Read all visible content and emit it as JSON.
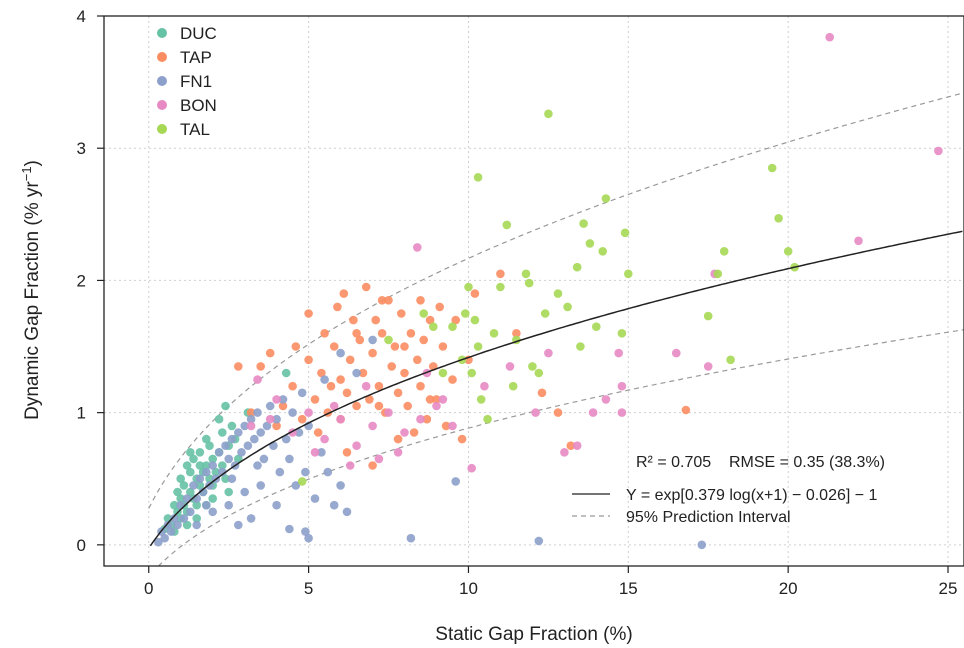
{
  "chart_data": {
    "type": "scatter",
    "xlabel": "Static Gap Fraction (%)",
    "ylabel_main": "Dynamic Gap Fraction (% yr",
    "ylabel_sup": "−1",
    "ylabel_close": ")",
    "xlim": [
      -1.4,
      25.5
    ],
    "ylim": [
      -0.16,
      4.0
    ],
    "xticks": [
      0,
      5,
      10,
      15,
      20,
      25
    ],
    "xtick_labels": [
      "0",
      "5",
      "10",
      "15",
      "20",
      "25"
    ],
    "yticks": [
      0,
      1,
      2,
      3,
      4
    ],
    "ytick_labels": [
      "0",
      "1",
      "2",
      "3",
      "4"
    ],
    "grid": true,
    "legend_position": "top-left",
    "stats_text": "R² = 0.705    RMSE = 0.35 (38.3%)",
    "fit_label": "Y = exp[0.379 log(x+1) − 0.026] − 1",
    "interval_label": "95% Prediction Interval",
    "fit": {
      "a": 0.379,
      "b": -0.026,
      "color": "#222222"
    },
    "prediction_interval": {
      "color": "#999999",
      "lower_shift": -0.25,
      "upper_shift": 0.27
    },
    "series": [
      {
        "name": "DUC",
        "color": "#66c2a5",
        "points": [
          [
            0.5,
            0.12
          ],
          [
            0.6,
            0.2
          ],
          [
            0.7,
            0.15
          ],
          [
            0.8,
            0.3
          ],
          [
            0.9,
            0.25
          ],
          [
            0.9,
            0.4
          ],
          [
            1.0,
            0.35
          ],
          [
            1.0,
            0.5
          ],
          [
            1.1,
            0.3
          ],
          [
            1.1,
            0.45
          ],
          [
            1.2,
            0.6
          ],
          [
            1.2,
            0.25
          ],
          [
            1.3,
            0.4
          ],
          [
            1.3,
            0.55
          ],
          [
            1.4,
            0.35
          ],
          [
            1.4,
            0.65
          ],
          [
            1.5,
            0.5
          ],
          [
            1.5,
            0.3
          ],
          [
            1.6,
            0.45
          ],
          [
            1.6,
            0.7
          ],
          [
            1.7,
            0.55
          ],
          [
            1.7,
            0.4
          ],
          [
            1.8,
            0.6
          ],
          [
            1.8,
            0.3
          ],
          [
            1.9,
            0.5
          ],
          [
            1.9,
            0.75
          ],
          [
            2.0,
            0.65
          ],
          [
            2.0,
            0.45
          ],
          [
            2.1,
            0.55
          ],
          [
            2.2,
            0.7
          ],
          [
            2.3,
            0.6
          ],
          [
            2.3,
            0.85
          ],
          [
            2.4,
            0.5
          ],
          [
            2.5,
            0.75
          ],
          [
            2.6,
            0.9
          ],
          [
            2.2,
            0.95
          ],
          [
            2.4,
            1.05
          ],
          [
            1.3,
            0.7
          ],
          [
            1.0,
            0.2
          ],
          [
            0.8,
            0.1
          ],
          [
            1.5,
            0.2
          ],
          [
            2.0,
            0.35
          ],
          [
            2.7,
            0.8
          ],
          [
            1.2,
            0.15
          ],
          [
            1.6,
            0.6
          ],
          [
            1.8,
            0.8
          ],
          [
            2.8,
            0.65
          ],
          [
            3.1,
            1.0
          ],
          [
            4.3,
            1.3
          ],
          [
            2.5,
            0.4
          ]
        ]
      },
      {
        "name": "TAP",
        "color": "#fc8d62",
        "points": [
          [
            2.8,
            1.35
          ],
          [
            3.5,
            1.35
          ],
          [
            3.8,
            1.45
          ],
          [
            4.2,
            1.05
          ],
          [
            4.5,
            1.2
          ],
          [
            4.8,
            0.95
          ],
          [
            5.0,
            1.4
          ],
          [
            5.2,
            1.1
          ],
          [
            5.4,
            1.3
          ],
          [
            5.5,
            1.6
          ],
          [
            5.6,
            1.0
          ],
          [
            5.8,
            1.5
          ],
          [
            5.9,
            1.8
          ],
          [
            6.0,
            1.25
          ],
          [
            6.1,
            1.9
          ],
          [
            6.2,
            1.15
          ],
          [
            6.3,
            1.4
          ],
          [
            6.4,
            1.7
          ],
          [
            6.5,
            1.05
          ],
          [
            6.6,
            1.55
          ],
          [
            6.7,
            1.3
          ],
          [
            6.8,
            1.95
          ],
          [
            6.9,
            1.1
          ],
          [
            7.0,
            1.45
          ],
          [
            7.1,
            1.7
          ],
          [
            7.2,
            1.2
          ],
          [
            7.3,
            1.6
          ],
          [
            7.4,
            1.0
          ],
          [
            7.5,
            1.85
          ],
          [
            7.6,
            1.35
          ],
          [
            7.7,
            1.5
          ],
          [
            7.8,
            1.15
          ],
          [
            7.9,
            1.75
          ],
          [
            8.0,
            1.3
          ],
          [
            8.1,
            1.05
          ],
          [
            8.2,
            1.6
          ],
          [
            8.3,
            0.85
          ],
          [
            8.4,
            1.4
          ],
          [
            8.5,
            1.2
          ],
          [
            8.6,
            1.55
          ],
          [
            8.7,
            0.95
          ],
          [
            8.8,
            1.7
          ],
          [
            8.9,
            1.35
          ],
          [
            9.0,
            1.1
          ],
          [
            9.1,
            1.8
          ],
          [
            9.2,
            1.5
          ],
          [
            9.3,
            0.9
          ],
          [
            9.5,
            1.25
          ],
          [
            9.8,
            0.8
          ],
          [
            10.0,
            1.4
          ],
          [
            10.2,
            1.9
          ],
          [
            11.0,
            2.05
          ],
          [
            11.5,
            1.6
          ],
          [
            12.3,
            1.15
          ],
          [
            12.8,
            1.0
          ],
          [
            13.2,
            0.75
          ],
          [
            16.8,
            1.02
          ],
          [
            5.3,
            0.85
          ],
          [
            6.2,
            0.7
          ],
          [
            7.0,
            0.6
          ],
          [
            4.0,
            0.9
          ],
          [
            3.2,
            1.0
          ],
          [
            5.0,
            1.75
          ],
          [
            6.5,
            1.6
          ],
          [
            7.3,
            1.85
          ],
          [
            7.8,
            0.8
          ],
          [
            8.5,
            1.85
          ],
          [
            9.6,
            1.7
          ],
          [
            4.6,
            1.5
          ],
          [
            5.7,
            1.2
          ],
          [
            6.0,
            0.95
          ],
          [
            7.2,
            1.05
          ],
          [
            8.0,
            1.5
          ],
          [
            8.8,
            1.1
          ]
        ]
      },
      {
        "name": "FN1",
        "color": "#8da0cb",
        "points": [
          [
            0.3,
            0.02
          ],
          [
            0.4,
            0.1
          ],
          [
            0.5,
            0.05
          ],
          [
            0.6,
            0.15
          ],
          [
            0.7,
            0.1
          ],
          [
            0.8,
            0.2
          ],
          [
            0.9,
            0.15
          ],
          [
            1.0,
            0.3
          ],
          [
            1.1,
            0.2
          ],
          [
            1.2,
            0.35
          ],
          [
            1.3,
            0.25
          ],
          [
            1.4,
            0.45
          ],
          [
            1.5,
            0.35
          ],
          [
            1.6,
            0.5
          ],
          [
            1.7,
            0.4
          ],
          [
            1.8,
            0.55
          ],
          [
            1.9,
            0.45
          ],
          [
            2.0,
            0.6
          ],
          [
            2.1,
            0.5
          ],
          [
            2.2,
            0.7
          ],
          [
            2.3,
            0.55
          ],
          [
            2.4,
            0.75
          ],
          [
            2.5,
            0.65
          ],
          [
            2.6,
            0.8
          ],
          [
            2.7,
            0.6
          ],
          [
            2.8,
            0.85
          ],
          [
            2.9,
            0.7
          ],
          [
            3.0,
            0.9
          ],
          [
            3.1,
            0.75
          ],
          [
            3.2,
            0.95
          ],
          [
            3.3,
            0.8
          ],
          [
            3.4,
            1.0
          ],
          [
            3.5,
            0.85
          ],
          [
            3.6,
            0.65
          ],
          [
            3.7,
            0.9
          ],
          [
            3.8,
            1.05
          ],
          [
            3.9,
            0.75
          ],
          [
            4.0,
            0.95
          ],
          [
            4.1,
            0.55
          ],
          [
            4.2,
            1.1
          ],
          [
            4.3,
            0.8
          ],
          [
            4.4,
            0.65
          ],
          [
            4.5,
            1.0
          ],
          [
            4.6,
            0.45
          ],
          [
            4.7,
            0.85
          ],
          [
            4.8,
            1.15
          ],
          [
            4.9,
            0.55
          ],
          [
            5.0,
            0.9
          ],
          [
            5.2,
            0.35
          ],
          [
            5.4,
            0.7
          ],
          [
            5.6,
            0.55
          ],
          [
            5.8,
            0.3
          ],
          [
            6.0,
            0.45
          ],
          [
            6.2,
            0.25
          ],
          [
            4.4,
            0.12
          ],
          [
            4.9,
            0.1
          ],
          [
            5.0,
            0.05
          ],
          [
            6.5,
            1.3
          ],
          [
            7.0,
            1.55
          ],
          [
            5.5,
            1.25
          ],
          [
            6.0,
            1.45
          ],
          [
            8.2,
            0.05
          ],
          [
            9.6,
            0.48
          ],
          [
            12.2,
            0.03
          ],
          [
            17.3,
            0.0
          ],
          [
            1.5,
            0.15
          ],
          [
            2.0,
            0.25
          ],
          [
            2.5,
            0.3
          ],
          [
            3.0,
            0.4
          ],
          [
            3.5,
            0.45
          ],
          [
            4.0,
            0.3
          ],
          [
            2.8,
            0.15
          ],
          [
            3.2,
            0.2
          ],
          [
            1.8,
            0.3
          ],
          [
            2.6,
            0.5
          ],
          [
            3.4,
            0.6
          ]
        ]
      },
      {
        "name": "BON",
        "color": "#e78ac3",
        "points": [
          [
            3.2,
            0.9
          ],
          [
            3.8,
            0.95
          ],
          [
            4.5,
            0.85
          ],
          [
            5.0,
            1.0
          ],
          [
            5.5,
            0.8
          ],
          [
            6.0,
            0.95
          ],
          [
            6.5,
            0.75
          ],
          [
            7.0,
            0.9
          ],
          [
            7.5,
            1.0
          ],
          [
            8.0,
            0.85
          ],
          [
            8.5,
            0.95
          ],
          [
            9.0,
            1.05
          ],
          [
            9.5,
            0.9
          ],
          [
            6.3,
            0.6
          ],
          [
            7.2,
            0.65
          ],
          [
            8.4,
            2.25
          ],
          [
            10.1,
            0.58
          ],
          [
            12.1,
            1.0
          ],
          [
            12.5,
            1.45
          ],
          [
            13.0,
            0.7
          ],
          [
            13.4,
            0.75
          ],
          [
            13.9,
            1.0
          ],
          [
            14.3,
            1.1
          ],
          [
            14.7,
            1.45
          ],
          [
            14.8,
            1.2
          ],
          [
            14.8,
            1.0
          ],
          [
            16.5,
            1.45
          ],
          [
            17.5,
            1.35
          ],
          [
            17.7,
            2.05
          ],
          [
            22.2,
            2.3
          ],
          [
            21.3,
            3.84
          ],
          [
            24.7,
            2.98
          ],
          [
            3.4,
            1.25
          ],
          [
            4.0,
            1.1
          ],
          [
            5.8,
            1.05
          ],
          [
            6.8,
            1.2
          ],
          [
            8.7,
            1.3
          ],
          [
            9.2,
            1.1
          ],
          [
            10.5,
            1.2
          ],
          [
            11.3,
            1.35
          ],
          [
            7.8,
            0.7
          ],
          [
            5.2,
            0.7
          ]
        ]
      },
      {
        "name": "TAL",
        "color": "#a6d854",
        "points": [
          [
            9.2,
            1.3
          ],
          [
            9.5,
            1.65
          ],
          [
            9.8,
            1.4
          ],
          [
            9.9,
            1.75
          ],
          [
            10.0,
            1.95
          ],
          [
            10.1,
            1.3
          ],
          [
            10.2,
            1.7
          ],
          [
            10.3,
            1.5
          ],
          [
            10.4,
            1.1
          ],
          [
            10.3,
            2.78
          ],
          [
            10.8,
            1.6
          ],
          [
            11.0,
            1.95
          ],
          [
            11.2,
            2.42
          ],
          [
            11.5,
            1.55
          ],
          [
            11.8,
            2.05
          ],
          [
            11.9,
            1.98
          ],
          [
            12.0,
            1.35
          ],
          [
            12.2,
            1.3
          ],
          [
            12.4,
            1.75
          ],
          [
            12.5,
            3.26
          ],
          [
            13.4,
            2.1
          ],
          [
            13.6,
            2.43
          ],
          [
            13.8,
            2.28
          ],
          [
            14.0,
            1.65
          ],
          [
            14.2,
            2.22
          ],
          [
            14.3,
            2.62
          ],
          [
            14.8,
            1.6
          ],
          [
            14.9,
            2.36
          ],
          [
            15.0,
            2.05
          ],
          [
            17.5,
            1.73
          ],
          [
            17.8,
            2.05
          ],
          [
            18.0,
            2.22
          ],
          [
            18.2,
            1.4
          ],
          [
            19.5,
            2.85
          ],
          [
            19.7,
            2.47
          ],
          [
            20.0,
            2.22
          ],
          [
            20.2,
            2.1
          ],
          [
            13.1,
            1.8
          ],
          [
            13.5,
            1.5
          ],
          [
            12.8,
            1.9
          ],
          [
            11.4,
            1.2
          ],
          [
            10.6,
            0.95
          ],
          [
            8.9,
            1.65
          ],
          [
            8.6,
            1.75
          ],
          [
            7.5,
            1.55
          ],
          [
            4.8,
            0.48
          ]
        ]
      }
    ]
  }
}
